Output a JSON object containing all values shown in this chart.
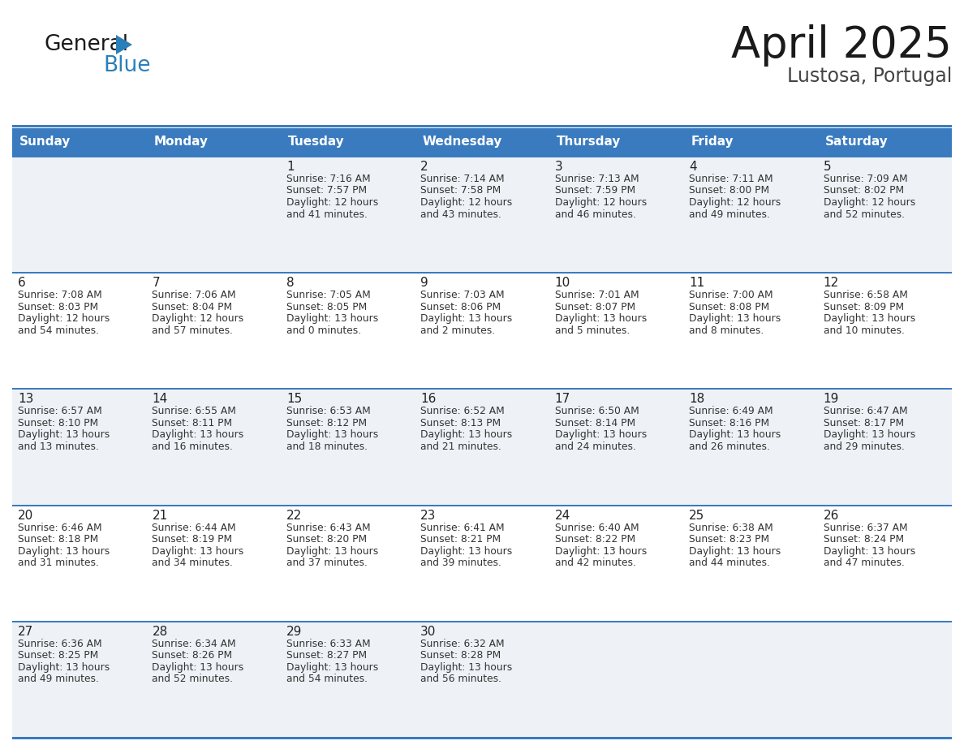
{
  "title": "April 2025",
  "subtitle": "Lustosa, Portugal",
  "header_bg": "#3a7bbf",
  "header_text": "#ffffff",
  "week1_bg": "#edf1f5",
  "cell_bg_white": "#ffffff",
  "row_line_color": "#3a7bbf",
  "days_of_week": [
    "Sunday",
    "Monday",
    "Tuesday",
    "Wednesday",
    "Thursday",
    "Friday",
    "Saturday"
  ],
  "weeks": [
    [
      {
        "day": "",
        "sunrise": "",
        "sunset": "",
        "daylight": ""
      },
      {
        "day": "",
        "sunrise": "",
        "sunset": "",
        "daylight": ""
      },
      {
        "day": "1",
        "sunrise": "Sunrise: 7:16 AM",
        "sunset": "Sunset: 7:57 PM",
        "daylight": "Daylight: 12 hours\nand 41 minutes."
      },
      {
        "day": "2",
        "sunrise": "Sunrise: 7:14 AM",
        "sunset": "Sunset: 7:58 PM",
        "daylight": "Daylight: 12 hours\nand 43 minutes."
      },
      {
        "day": "3",
        "sunrise": "Sunrise: 7:13 AM",
        "sunset": "Sunset: 7:59 PM",
        "daylight": "Daylight: 12 hours\nand 46 minutes."
      },
      {
        "day": "4",
        "sunrise": "Sunrise: 7:11 AM",
        "sunset": "Sunset: 8:00 PM",
        "daylight": "Daylight: 12 hours\nand 49 minutes."
      },
      {
        "day": "5",
        "sunrise": "Sunrise: 7:09 AM",
        "sunset": "Sunset: 8:02 PM",
        "daylight": "Daylight: 12 hours\nand 52 minutes."
      }
    ],
    [
      {
        "day": "6",
        "sunrise": "Sunrise: 7:08 AM",
        "sunset": "Sunset: 8:03 PM",
        "daylight": "Daylight: 12 hours\nand 54 minutes."
      },
      {
        "day": "7",
        "sunrise": "Sunrise: 7:06 AM",
        "sunset": "Sunset: 8:04 PM",
        "daylight": "Daylight: 12 hours\nand 57 minutes."
      },
      {
        "day": "8",
        "sunrise": "Sunrise: 7:05 AM",
        "sunset": "Sunset: 8:05 PM",
        "daylight": "Daylight: 13 hours\nand 0 minutes."
      },
      {
        "day": "9",
        "sunrise": "Sunrise: 7:03 AM",
        "sunset": "Sunset: 8:06 PM",
        "daylight": "Daylight: 13 hours\nand 2 minutes."
      },
      {
        "day": "10",
        "sunrise": "Sunrise: 7:01 AM",
        "sunset": "Sunset: 8:07 PM",
        "daylight": "Daylight: 13 hours\nand 5 minutes."
      },
      {
        "day": "11",
        "sunrise": "Sunrise: 7:00 AM",
        "sunset": "Sunset: 8:08 PM",
        "daylight": "Daylight: 13 hours\nand 8 minutes."
      },
      {
        "day": "12",
        "sunrise": "Sunrise: 6:58 AM",
        "sunset": "Sunset: 8:09 PM",
        "daylight": "Daylight: 13 hours\nand 10 minutes."
      }
    ],
    [
      {
        "day": "13",
        "sunrise": "Sunrise: 6:57 AM",
        "sunset": "Sunset: 8:10 PM",
        "daylight": "Daylight: 13 hours\nand 13 minutes."
      },
      {
        "day": "14",
        "sunrise": "Sunrise: 6:55 AM",
        "sunset": "Sunset: 8:11 PM",
        "daylight": "Daylight: 13 hours\nand 16 minutes."
      },
      {
        "day": "15",
        "sunrise": "Sunrise: 6:53 AM",
        "sunset": "Sunset: 8:12 PM",
        "daylight": "Daylight: 13 hours\nand 18 minutes."
      },
      {
        "day": "16",
        "sunrise": "Sunrise: 6:52 AM",
        "sunset": "Sunset: 8:13 PM",
        "daylight": "Daylight: 13 hours\nand 21 minutes."
      },
      {
        "day": "17",
        "sunrise": "Sunrise: 6:50 AM",
        "sunset": "Sunset: 8:14 PM",
        "daylight": "Daylight: 13 hours\nand 24 minutes."
      },
      {
        "day": "18",
        "sunrise": "Sunrise: 6:49 AM",
        "sunset": "Sunset: 8:16 PM",
        "daylight": "Daylight: 13 hours\nand 26 minutes."
      },
      {
        "day": "19",
        "sunrise": "Sunrise: 6:47 AM",
        "sunset": "Sunset: 8:17 PM",
        "daylight": "Daylight: 13 hours\nand 29 minutes."
      }
    ],
    [
      {
        "day": "20",
        "sunrise": "Sunrise: 6:46 AM",
        "sunset": "Sunset: 8:18 PM",
        "daylight": "Daylight: 13 hours\nand 31 minutes."
      },
      {
        "day": "21",
        "sunrise": "Sunrise: 6:44 AM",
        "sunset": "Sunset: 8:19 PM",
        "daylight": "Daylight: 13 hours\nand 34 minutes."
      },
      {
        "day": "22",
        "sunrise": "Sunrise: 6:43 AM",
        "sunset": "Sunset: 8:20 PM",
        "daylight": "Daylight: 13 hours\nand 37 minutes."
      },
      {
        "day": "23",
        "sunrise": "Sunrise: 6:41 AM",
        "sunset": "Sunset: 8:21 PM",
        "daylight": "Daylight: 13 hours\nand 39 minutes."
      },
      {
        "day": "24",
        "sunrise": "Sunrise: 6:40 AM",
        "sunset": "Sunset: 8:22 PM",
        "daylight": "Daylight: 13 hours\nand 42 minutes."
      },
      {
        "day": "25",
        "sunrise": "Sunrise: 6:38 AM",
        "sunset": "Sunset: 8:23 PM",
        "daylight": "Daylight: 13 hours\nand 44 minutes."
      },
      {
        "day": "26",
        "sunrise": "Sunrise: 6:37 AM",
        "sunset": "Sunset: 8:24 PM",
        "daylight": "Daylight: 13 hours\nand 47 minutes."
      }
    ],
    [
      {
        "day": "27",
        "sunrise": "Sunrise: 6:36 AM",
        "sunset": "Sunset: 8:25 PM",
        "daylight": "Daylight: 13 hours\nand 49 minutes."
      },
      {
        "day": "28",
        "sunrise": "Sunrise: 6:34 AM",
        "sunset": "Sunset: 8:26 PM",
        "daylight": "Daylight: 13 hours\nand 52 minutes."
      },
      {
        "day": "29",
        "sunrise": "Sunrise: 6:33 AM",
        "sunset": "Sunset: 8:27 PM",
        "daylight": "Daylight: 13 hours\nand 54 minutes."
      },
      {
        "day": "30",
        "sunrise": "Sunrise: 6:32 AM",
        "sunset": "Sunset: 8:28 PM",
        "daylight": "Daylight: 13 hours\nand 56 minutes."
      },
      {
        "day": "",
        "sunrise": "",
        "sunset": "",
        "daylight": ""
      },
      {
        "day": "",
        "sunrise": "",
        "sunset": "",
        "daylight": ""
      },
      {
        "day": "",
        "sunrise": "",
        "sunset": "",
        "daylight": ""
      }
    ]
  ],
  "logo_text1": "General",
  "logo_text2": "Blue",
  "logo_color1": "#1a1a1a",
  "logo_color2": "#2980b9",
  "logo_triangle_color": "#2980b9",
  "title_fontsize": 38,
  "subtitle_fontsize": 17,
  "header_fontsize": 11,
  "day_num_fontsize": 11,
  "detail_fontsize": 8.8
}
